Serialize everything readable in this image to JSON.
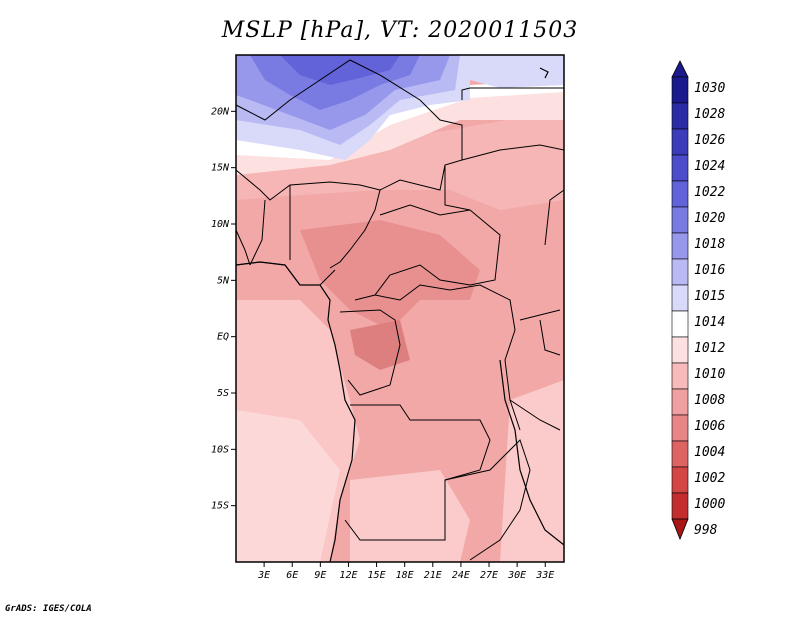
{
  "title": "MSLP [hPa], VT: 2020011503",
  "credit": "GrADS: IGES/COLA",
  "map": {
    "lon_range": [
      0,
      35
    ],
    "lat_range": [
      -20,
      25
    ],
    "lat_ticks": [
      {
        "value": 20,
        "label": "20N"
      },
      {
        "value": 15,
        "label": "15N"
      },
      {
        "value": 10,
        "label": "10N"
      },
      {
        "value": 5,
        "label": "5N"
      },
      {
        "value": 0,
        "label": "EQ"
      },
      {
        "value": -5,
        "label": "5S"
      },
      {
        "value": -10,
        "label": "10S"
      },
      {
        "value": -15,
        "label": "15S"
      }
    ],
    "lon_ticks": [
      {
        "value": 3,
        "label": "3E"
      },
      {
        "value": 6,
        "label": "6E"
      },
      {
        "value": 9,
        "label": "9E"
      },
      {
        "value": 12,
        "label": "12E"
      },
      {
        "value": 15,
        "label": "15E"
      },
      {
        "value": 18,
        "label": "18E"
      },
      {
        "value": 21,
        "label": "21E"
      },
      {
        "value": 24,
        "label": "24E"
      },
      {
        "value": 27,
        "label": "27E"
      },
      {
        "value": 30,
        "label": "30E"
      },
      {
        "value": 33,
        "label": "33E"
      }
    ]
  },
  "colorbar": {
    "levels": [
      "1030",
      "1028",
      "1026",
      "1024",
      "1022",
      "1020",
      "1018",
      "1016",
      "1015",
      "1014",
      "1012",
      "1010",
      "1008",
      "1006",
      "1004",
      "1002",
      "1000",
      "998"
    ],
    "colors": [
      "#1a1a8c",
      "#2b2ba6",
      "#3c3cbb",
      "#4d4dcc",
      "#6262d9",
      "#7a7ae3",
      "#9797ec",
      "#b9b9f4",
      "#d9d9fa",
      "#ffffff",
      "#fde0e0",
      "#f7bbbb",
      "#f0a0a0",
      "#e88686",
      "#de6464",
      "#d44646",
      "#c42d2d",
      "#a81616"
    ],
    "top_color": "#1a1a8c",
    "bottom_color": "#a81616"
  }
}
